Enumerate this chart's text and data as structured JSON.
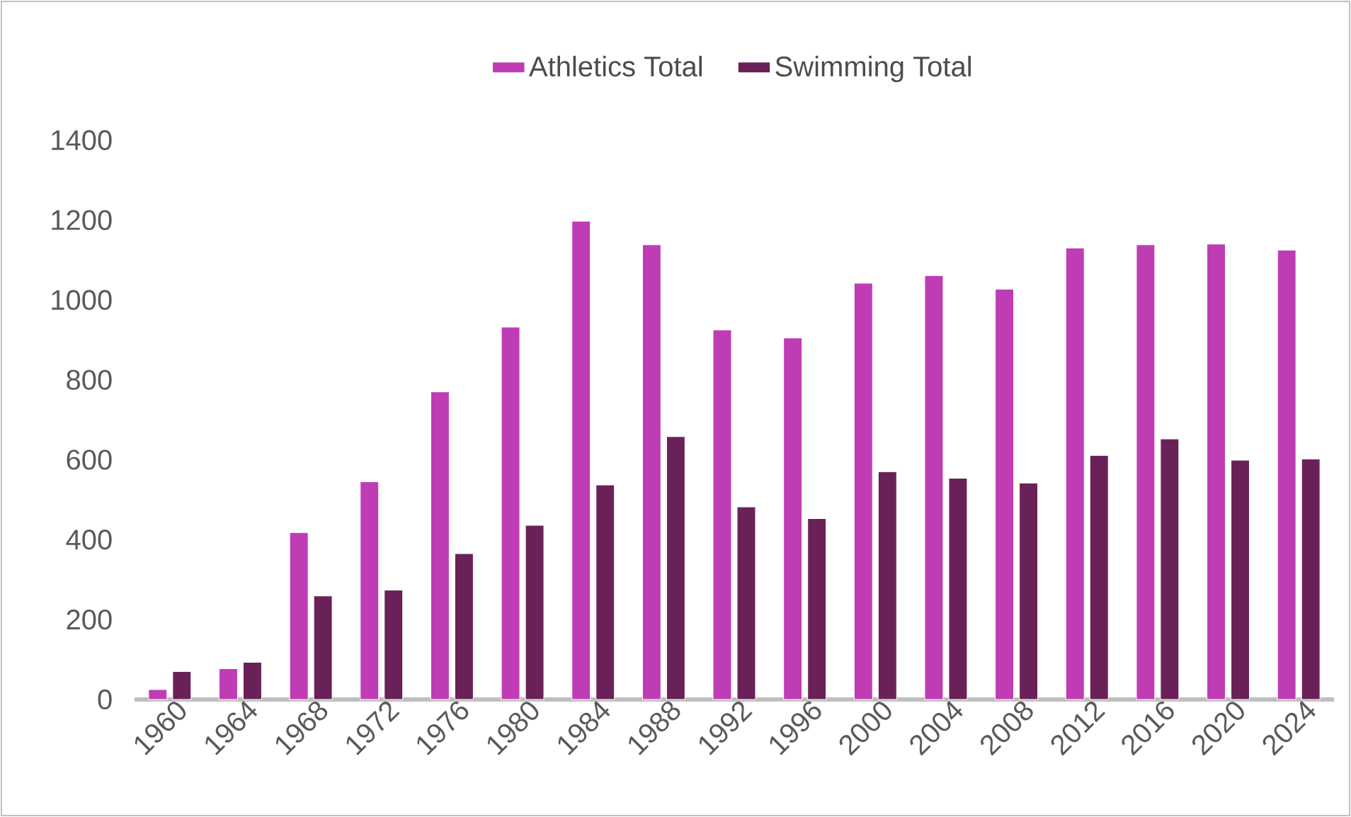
{
  "chart_data": {
    "type": "bar",
    "categories": [
      "1960",
      "1964",
      "1968",
      "1972",
      "1976",
      "1980",
      "1984",
      "1988",
      "1992",
      "1996",
      "2000",
      "2004",
      "2008",
      "2012",
      "2016",
      "2020",
      "2024"
    ],
    "series": [
      {
        "name": "Athletics Total",
        "color": "#c03cb4",
        "values": [
          25,
          77,
          418,
          545,
          770,
          932,
          1197,
          1138,
          925,
          905,
          1042,
          1061,
          1027,
          1130,
          1138,
          1140,
          1125
        ]
      },
      {
        "name": "Swimming Total",
        "color": "#6a2158",
        "values": [
          70,
          93,
          259,
          274,
          365,
          436,
          537,
          658,
          482,
          453,
          570,
          554,
          542,
          611,
          652,
          599,
          602
        ]
      }
    ],
    "ylim": [
      0,
      1400
    ],
    "yticks": [
      0,
      200,
      400,
      600,
      800,
      1000,
      1200,
      1400
    ],
    "legend": "top",
    "grid": false
  }
}
